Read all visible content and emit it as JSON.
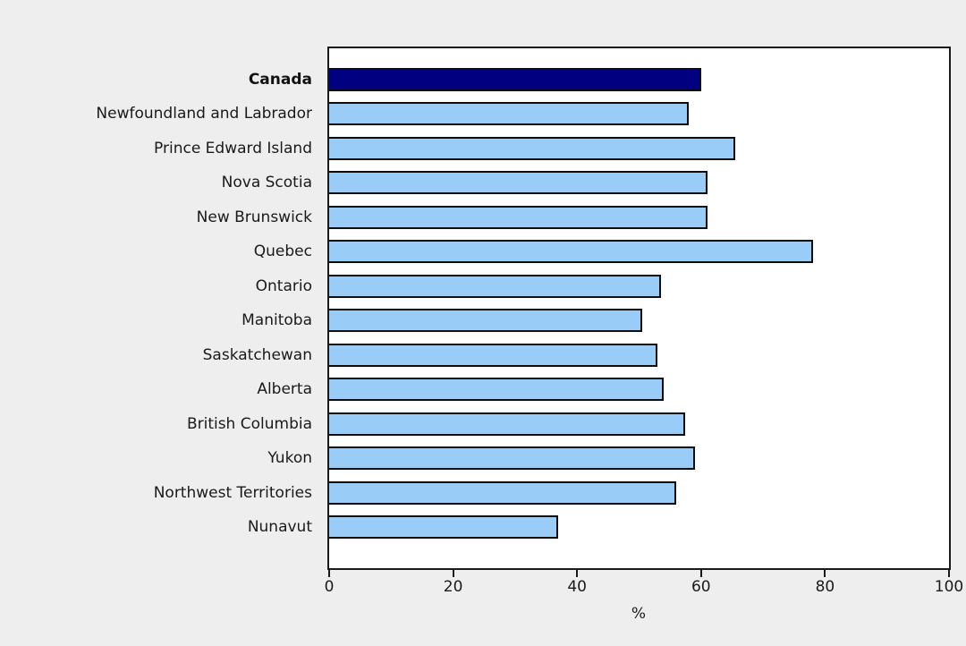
{
  "chart_data": {
    "type": "bar",
    "orientation": "horizontal",
    "title": "",
    "xlabel": "%",
    "ylabel": "",
    "xlim": [
      0,
      100
    ],
    "x_ticks": [
      0,
      20,
      40,
      60,
      80,
      100
    ],
    "grid": false,
    "legend": false,
    "categories": [
      "Canada",
      "Newfoundland and Labrador",
      "Prince Edward Island",
      "Nova Scotia",
      "New Brunswick",
      "Quebec",
      "Ontario",
      "Manitoba",
      "Saskatchewan",
      "Alberta",
      "British Columbia",
      "Yukon",
      "Northwest Territories",
      "Nunavut"
    ],
    "values": [
      60,
      58,
      65.5,
      61,
      61,
      78,
      53.5,
      50.5,
      53,
      54,
      57.5,
      59,
      56,
      37
    ],
    "highlight_category": "Canada",
    "colors": {
      "highlight_bar": "#000080",
      "default_bar": "#99CCF7",
      "bar_border": "#0d0d0d",
      "plot_border": "#1a1a1a",
      "plot_background": "#ffffff",
      "page_background": "#eeeeee",
      "text": "#1a1a1a"
    }
  }
}
